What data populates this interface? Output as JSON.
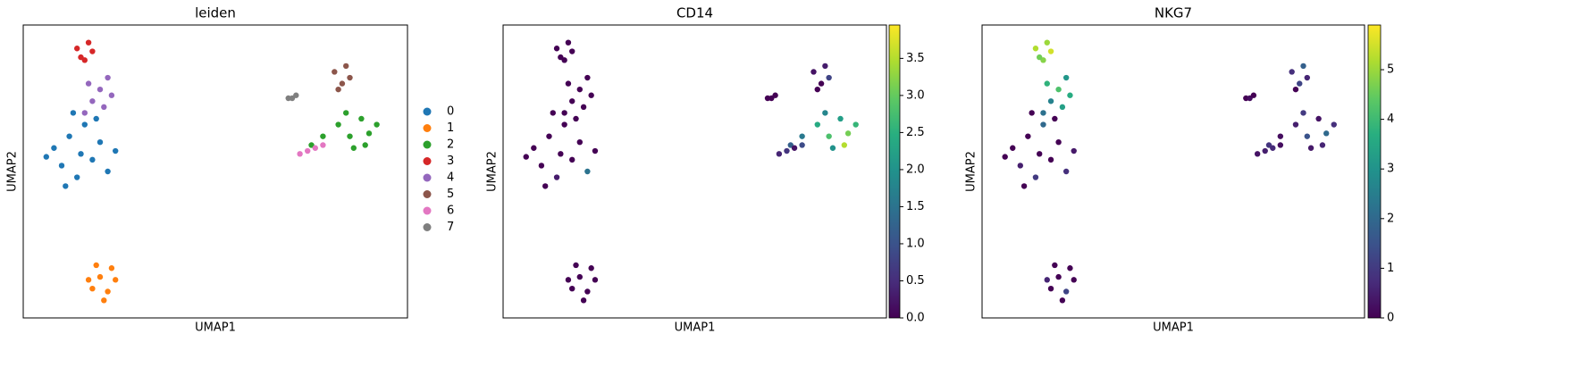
{
  "chart_data": [
    {
      "type": "scatter",
      "title": "leiden",
      "xlabel": "UMAP1",
      "ylabel": "UMAP2",
      "xlim": [
        0,
        100
      ],
      "ylim": [
        0,
        100
      ],
      "series": [
        {
          "name": "0",
          "color": "#1f77b4",
          "x": [
            8,
            10,
            12,
            14,
            15,
            16,
            18,
            20,
            22,
            6,
            11,
            19,
            24,
            13
          ],
          "y": [
            58,
            52,
            62,
            48,
            56,
            66,
            54,
            60,
            50,
            55,
            45,
            68,
            57,
            70
          ]
        },
        {
          "name": "1",
          "color": "#ff7f0e",
          "x": [
            18,
            20,
            22,
            24,
            19,
            21,
            17,
            23
          ],
          "y": [
            10,
            14,
            9,
            13,
            18,
            6,
            13,
            17
          ]
        },
        {
          "name": "2",
          "color": "#2ca02c",
          "x": [
            82,
            85,
            88,
            90,
            92,
            86,
            84,
            89,
            78,
            75
          ],
          "y": [
            66,
            62,
            68,
            63,
            66,
            58,
            70,
            59,
            62,
            59
          ]
        },
        {
          "name": "3",
          "color": "#d62728",
          "x": [
            14,
            16,
            18,
            17,
            15
          ],
          "y": [
            92,
            88,
            91,
            94,
            89
          ]
        },
        {
          "name": "4",
          "color": "#9467bd",
          "x": [
            17,
            20,
            22,
            18,
            21,
            16,
            23
          ],
          "y": [
            80,
            78,
            82,
            74,
            72,
            70,
            76
          ]
        },
        {
          "name": "5",
          "color": "#8c564b",
          "x": [
            81,
            83,
            85,
            82,
            84
          ],
          "y": [
            84,
            80,
            82,
            78,
            86
          ]
        },
        {
          "name": "6",
          "color": "#e377c2",
          "x": [
            72,
            74,
            76,
            78
          ],
          "y": [
            56,
            57,
            58,
            59
          ]
        },
        {
          "name": "7",
          "color": "#7f7f7f",
          "x": [
            69,
            70,
            71
          ],
          "y": [
            75,
            75,
            76
          ]
        }
      ]
    },
    {
      "type": "scatter",
      "title": "CD14",
      "xlabel": "UMAP1",
      "ylabel": "UMAP2",
      "xlim": [
        0,
        100
      ],
      "ylim": [
        0,
        100
      ],
      "colormap": "viridis",
      "x": [
        8,
        10,
        12,
        14,
        15,
        16,
        18,
        20,
        22,
        6,
        11,
        19,
        24,
        13,
        18,
        20,
        22,
        24,
        19,
        21,
        17,
        23,
        82,
        85,
        88,
        90,
        92,
        86,
        84,
        89,
        78,
        75,
        14,
        16,
        18,
        17,
        15,
        17,
        20,
        22,
        18,
        21,
        16,
        23,
        81,
        83,
        85,
        82,
        84,
        72,
        74,
        76,
        78,
        69,
        70,
        71
      ],
      "y": [
        58,
        52,
        62,
        48,
        56,
        66,
        54,
        60,
        50,
        55,
        45,
        68,
        57,
        70,
        10,
        14,
        9,
        13,
        18,
        6,
        13,
        17,
        66,
        62,
        68,
        63,
        66,
        58,
        70,
        59,
        62,
        59,
        92,
        88,
        91,
        94,
        89,
        80,
        78,
        82,
        74,
        72,
        70,
        76,
        84,
        80,
        82,
        78,
        86,
        56,
        57,
        58,
        59,
        75,
        75,
        76
      ],
      "values": [
        0,
        0,
        0,
        0.3,
        0,
        0,
        0,
        0,
        1.5,
        0,
        0,
        0,
        0,
        0,
        0,
        0,
        0,
        0,
        0,
        0,
        0,
        0,
        2.4,
        2.8,
        2.2,
        3.1,
        2.6,
        2.0,
        1.8,
        3.5,
        1.6,
        1.2,
        0,
        0,
        0,
        0,
        0,
        0,
        0,
        0,
        0,
        0,
        0,
        0,
        0.2,
        0,
        0.8,
        0,
        0.3,
        0.4,
        0.6,
        0.2,
        0.9,
        0,
        0,
        0
      ],
      "clim": [
        0,
        3.95
      ],
      "cticks": [
        {
          "value": 0,
          "label": "0.0"
        },
        {
          "value": 0.5,
          "label": "0.5"
        },
        {
          "value": 1,
          "label": "1.0"
        },
        {
          "value": 1.5,
          "label": "1.5"
        },
        {
          "value": 2,
          "label": "2.0"
        },
        {
          "value": 2.5,
          "label": "2.5"
        },
        {
          "value": 3,
          "label": "3.0"
        },
        {
          "value": 3.5,
          "label": "3.5"
        }
      ]
    },
    {
      "type": "scatter",
      "title": "NKG7",
      "xlabel": "UMAP1",
      "ylabel": "UMAP2",
      "xlim": [
        0,
        100
      ],
      "ylim": [
        0,
        100
      ],
      "colormap": "viridis",
      "x": [
        8,
        10,
        12,
        14,
        15,
        16,
        18,
        20,
        22,
        6,
        11,
        19,
        24,
        13,
        18,
        20,
        22,
        24,
        19,
        21,
        17,
        23,
        82,
        85,
        88,
        90,
        92,
        86,
        84,
        89,
        78,
        75,
        14,
        16,
        18,
        17,
        15,
        17,
        20,
        22,
        18,
        21,
        16,
        23,
        81,
        83,
        85,
        82,
        84,
        72,
        74,
        76,
        78,
        69,
        70,
        71
      ],
      "y": [
        58,
        52,
        62,
        48,
        56,
        66,
        54,
        60,
        50,
        55,
        45,
        68,
        57,
        70,
        10,
        14,
        9,
        13,
        18,
        6,
        13,
        17,
        66,
        62,
        68,
        63,
        66,
        58,
        70,
        59,
        62,
        59,
        92,
        88,
        91,
        94,
        89,
        80,
        78,
        82,
        74,
        72,
        70,
        76,
        84,
        80,
        82,
        78,
        86,
        56,
        57,
        58,
        59,
        75,
        75,
        76
      ],
      "values": [
        0,
        0.5,
        0,
        1,
        0,
        2,
        0,
        0,
        0.8,
        0,
        0,
        0,
        0.4,
        0,
        0,
        0,
        1.2,
        0,
        0,
        0,
        0.6,
        0,
        0.5,
        1.5,
        0.3,
        2,
        0.8,
        0.4,
        1,
        0.6,
        0.2,
        0.9,
        5.2,
        4.8,
        5.5,
        5.0,
        4.6,
        3.8,
        4.2,
        3.1,
        2.6,
        3.3,
        2.2,
        3.6,
        0.8,
        1.2,
        0.6,
        0,
        1.8,
        0.3,
        0.5,
        0.7,
        0.2,
        0,
        0.2,
        0
      ],
      "clim": [
        0,
        5.9
      ],
      "cticks": [
        0,
        1,
        2,
        3,
        4,
        5
      ]
    }
  ]
}
